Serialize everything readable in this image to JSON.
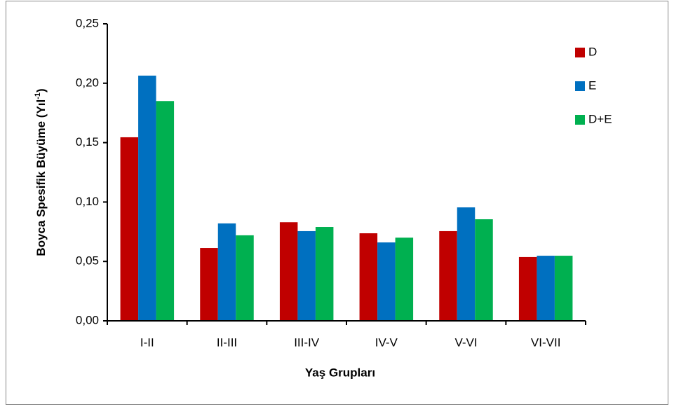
{
  "chart_data": {
    "type": "bar",
    "y_label": {
      "text": "Boyca Spesifik Büyüme (Yıl",
      "superscript": "-1",
      "suffix": ")"
    },
    "x_label": "Yaş Grupları",
    "categories": [
      "I-II",
      "II-III",
      "III-IV",
      "IV-V",
      "V-VI",
      "VI-VII"
    ],
    "series": [
      {
        "name": "D",
        "color": "#c00000",
        "values": [
          0.1545,
          0.0613,
          0.083,
          0.0737,
          0.0755,
          0.0537
        ]
      },
      {
        "name": "E",
        "color": "#0070c0",
        "values": [
          0.2064,
          0.082,
          0.0755,
          0.066,
          0.0955,
          0.0548
        ]
      },
      {
        "name": "D+E",
        "color": "#00b050",
        "values": [
          0.185,
          0.072,
          0.079,
          0.07,
          0.0855,
          0.0548
        ]
      }
    ],
    "ylim": [
      0,
      0.25
    ],
    "yticks": [
      {
        "value": 0,
        "label": "0,00"
      },
      {
        "value": 0.05,
        "label": "0,05"
      },
      {
        "value": 0.1,
        "label": "0,10"
      },
      {
        "value": 0.15,
        "label": "0,15"
      },
      {
        "value": 0.2,
        "label": "0,20"
      },
      {
        "value": 0.25,
        "label": "0,25"
      }
    ],
    "grid": false,
    "legend": "right"
  }
}
